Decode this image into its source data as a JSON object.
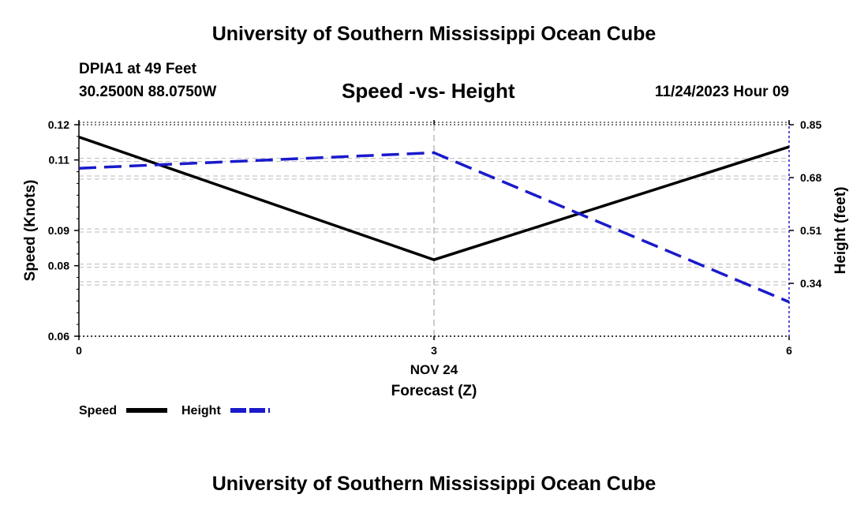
{
  "header": {
    "title": "University of Southern Mississippi Ocean Cube",
    "station": "DPIA1 at 49 Feet",
    "coords": "30.2500N  88.0750W",
    "chart_title": "Speed -vs- Height",
    "datetime": "11/24/2023 Hour 09"
  },
  "footer": {
    "title": "University of Southern Mississippi Ocean Cube"
  },
  "colors": {
    "speed": "#000000",
    "height": "#1a1acc",
    "grid": "#bbbbbb"
  },
  "chart_data": {
    "type": "line",
    "title": "Speed -vs- Height",
    "x": [
      0,
      3,
      6
    ],
    "x_ticks": [
      "0",
      "3",
      "6"
    ],
    "x_date_label": "NOV 24",
    "xlabel": "Forecast (Z)",
    "xlim": [
      0,
      6
    ],
    "ylabel_left": "Speed (Knots)",
    "ylim_left": [
      0.06,
      0.12
    ],
    "y_ticks_left": [
      "0.12",
      "0.11",
      "0.09",
      "0.08",
      "0.06"
    ],
    "ylabel_right": "Height (feet)",
    "ylim_right": [
      0.17,
      0.85
    ],
    "y_ticks_right": [
      "0.85",
      "0.68",
      "0.51",
      "0.34"
    ],
    "grid": true,
    "series": [
      {
        "name": "Speed",
        "axis": "left",
        "style": "solid",
        "values": [
          0.1165,
          0.0817,
          0.1137
        ]
      },
      {
        "name": "Height",
        "axis": "right",
        "style": "dashed",
        "values": [
          0.71,
          0.76,
          0.28
        ]
      }
    ],
    "legend": [
      "Speed",
      "Height"
    ],
    "legend_position": "bottom-left"
  }
}
